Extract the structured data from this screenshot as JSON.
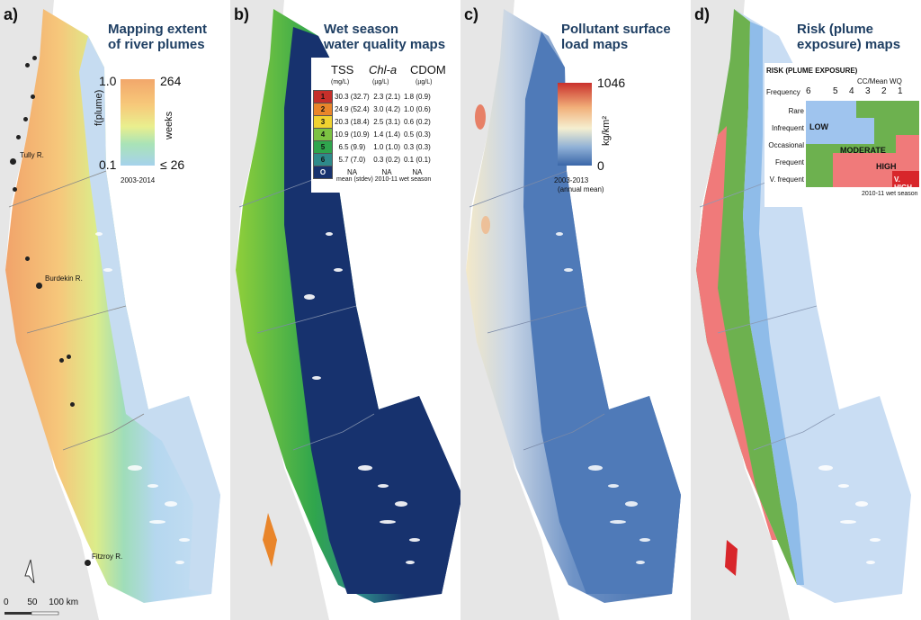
{
  "panels": {
    "a": {
      "label": "a)",
      "title_line1": "Mapping extent",
      "title_line2": "of river plumes",
      "legend": {
        "max_left": "1.0",
        "min_left": "0.1",
        "max_right": "264",
        "min_right": "≤ 26",
        "axis_left": "f(plume)",
        "axis_right": "weeks",
        "period": "2003-2014",
        "colors": [
          "#f2a76b",
          "#f7c97a",
          "#e9ef8e",
          "#a9e3b7",
          "#a6d2ec"
        ]
      },
      "rivers": [
        "Tully R.",
        "Burdekin R.",
        "Fitzroy R."
      ],
      "scale": {
        "ticks": [
          "0",
          "50",
          "100 km"
        ]
      }
    },
    "b": {
      "label": "b)",
      "title_line1": "Wet season",
      "title_line2": "water quality maps",
      "table": {
        "headers": [
          "TSS",
          "Chl-a",
          "CDOM"
        ],
        "units": [
          "(mg/L)",
          "(µg/L)",
          "(µg/L)"
        ],
        "rows": [
          {
            "cls": "1",
            "color": "#c62f2a",
            "tss": "30.3 (32.7)",
            "chl": "2.3 (2.1)",
            "cdom": "1.8 (0.9)"
          },
          {
            "cls": "2",
            "color": "#e9852a",
            "tss": "24.9 (52.4)",
            "chl": "3.0 (4.2)",
            "cdom": "1.0 (0.6)"
          },
          {
            "cls": "3",
            "color": "#f0d230",
            "tss": "20.3 (18.4)",
            "chl": "2.5 (3.1)",
            "cdom": "0.6 (0.2)"
          },
          {
            "cls": "4",
            "color": "#7cc242",
            "tss": "10.9 (10.9)",
            "chl": "1.4 (1.4)",
            "cdom": "0.5 (0.3)"
          },
          {
            "cls": "5",
            "color": "#2fa54d",
            "tss": "6.5 (9.9)",
            "chl": "1.0 (1.0)",
            "cdom": "0.3 (0.3)"
          },
          {
            "cls": "6",
            "color": "#2e8a8a",
            "tss": "5.7 (7.0)",
            "chl": "0.3 (0.2)",
            "cdom": "0.1 (0.1)"
          },
          {
            "cls": "O",
            "color": "#17326e",
            "tss": "NA",
            "chl": "NA",
            "cdom": "NA"
          }
        ],
        "footnote": "mean (stdev) 2010-11 wet season"
      }
    },
    "c": {
      "label": "c)",
      "title_line1": "Pollutant surface",
      "title_line2": "load maps",
      "legend": {
        "max": "1046",
        "min": "0",
        "unit": "kg/km²",
        "period": "2003-2013",
        "note": "(annual mean)",
        "colors": [
          "#c9302c",
          "#f2b07a",
          "#f5efd0",
          "#8fb0d6",
          "#3a66a8"
        ]
      }
    },
    "d": {
      "label": "d)",
      "title_line1": "Risk (plume",
      "title_line2": "exposure) maps",
      "matrix": {
        "title": "RISK (PLUME EXPOSURE)",
        "col_header": "CC/Mean WQ",
        "freq_label": "Frequency",
        "cols": [
          "6",
          "5",
          "4",
          "3",
          "2",
          "1"
        ],
        "rows": [
          "Rare",
          "Infrequent",
          "Occasional",
          "Frequent",
          "V. frequent"
        ],
        "levels": [
          "LOW",
          "MODERATE",
          "HIGH",
          "V. HIGH"
        ],
        "colors": {
          "low": "#9fc4ee",
          "moderate": "#6db14f",
          "high": "#f07a7a",
          "vhigh": "#d8262b"
        },
        "footnote": "2010-11 wet season"
      }
    }
  }
}
